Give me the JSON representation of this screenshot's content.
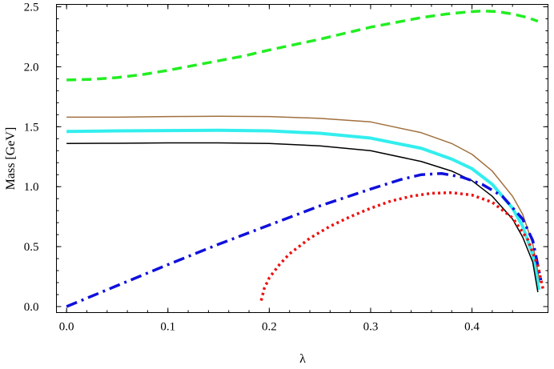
{
  "chart_data": {
    "type": "line",
    "title": "",
    "xlabel": "λ",
    "ylabel": "Mass [GeV]",
    "xlim": [
      -0.01,
      0.475
    ],
    "ylim": [
      -0.05,
      2.52
    ],
    "xticks": [
      0.0,
      0.1,
      0.2,
      0.3,
      0.4
    ],
    "xtick_labels": [
      "0.0",
      "0.1",
      "0.2",
      "0.3",
      "0.4"
    ],
    "yticks": [
      0.0,
      0.5,
      1.0,
      1.5,
      2.0,
      2.5
    ],
    "ytick_labels": [
      "0.0",
      "0.5",
      "1.0",
      "1.5",
      "2.0",
      "2.5"
    ],
    "grid": false,
    "legend": "none",
    "series": [
      {
        "color": "#22ee22",
        "style": "dashed",
        "width": 3.5,
        "x": [
          0.0,
          0.025,
          0.05,
          0.075,
          0.1,
          0.125,
          0.15,
          0.175,
          0.2,
          0.225,
          0.25,
          0.275,
          0.3,
          0.325,
          0.35,
          0.375,
          0.4,
          0.41,
          0.425,
          0.44,
          0.455,
          0.465
        ],
        "y": [
          1.89,
          1.895,
          1.91,
          1.935,
          1.97,
          2.01,
          2.05,
          2.09,
          2.14,
          2.185,
          2.23,
          2.28,
          2.33,
          2.37,
          2.41,
          2.44,
          2.46,
          2.465,
          2.46,
          2.44,
          2.41,
          2.38
        ]
      },
      {
        "color": "#a0703e",
        "style": "solid",
        "width": 1.5,
        "x": [
          0.0,
          0.05,
          0.1,
          0.15,
          0.2,
          0.25,
          0.3,
          0.35,
          0.38,
          0.4,
          0.42,
          0.44,
          0.45,
          0.46,
          0.467
        ],
        "y": [
          1.58,
          1.58,
          1.585,
          1.587,
          1.585,
          1.57,
          1.54,
          1.45,
          1.36,
          1.27,
          1.13,
          0.92,
          0.77,
          0.52,
          0.2
        ]
      },
      {
        "color": "#33eeee",
        "style": "solid",
        "width": 4,
        "x": [
          0.0,
          0.05,
          0.1,
          0.15,
          0.2,
          0.25,
          0.3,
          0.35,
          0.38,
          0.4,
          0.42,
          0.44,
          0.45,
          0.46,
          0.466
        ],
        "y": [
          1.46,
          1.465,
          1.468,
          1.47,
          1.465,
          1.445,
          1.405,
          1.32,
          1.23,
          1.15,
          1.02,
          0.82,
          0.67,
          0.43,
          0.14
        ]
      },
      {
        "color": "#000000",
        "style": "solid",
        "width": 1.5,
        "x": [
          0.0,
          0.05,
          0.1,
          0.15,
          0.2,
          0.25,
          0.3,
          0.35,
          0.38,
          0.4,
          0.42,
          0.44,
          0.45,
          0.46,
          0.465
        ],
        "y": [
          1.36,
          1.362,
          1.365,
          1.365,
          1.36,
          1.34,
          1.3,
          1.21,
          1.13,
          1.05,
          0.92,
          0.73,
          0.58,
          0.37,
          0.12
        ]
      },
      {
        "color": "#1010dd",
        "style": "dashdot",
        "width": 3.5,
        "x": [
          0.0,
          0.05,
          0.1,
          0.15,
          0.2,
          0.25,
          0.3,
          0.33,
          0.35,
          0.37,
          0.39,
          0.41,
          0.43,
          0.45,
          0.46,
          0.468
        ],
        "y": [
          0.0,
          0.175,
          0.35,
          0.52,
          0.68,
          0.84,
          0.98,
          1.06,
          1.1,
          1.11,
          1.08,
          1.02,
          0.92,
          0.73,
          0.55,
          0.22
        ]
      },
      {
        "color": "#ee1111",
        "style": "dotted",
        "width": 3.5,
        "x": [
          0.192,
          0.195,
          0.2,
          0.21,
          0.22,
          0.24,
          0.26,
          0.28,
          0.3,
          0.32,
          0.34,
          0.36,
          0.38,
          0.4,
          0.42,
          0.44,
          0.455,
          0.465,
          0.47
        ],
        "y": [
          0.05,
          0.15,
          0.24,
          0.35,
          0.44,
          0.57,
          0.67,
          0.75,
          0.82,
          0.88,
          0.92,
          0.945,
          0.95,
          0.93,
          0.87,
          0.74,
          0.56,
          0.34,
          0.15
        ]
      }
    ]
  }
}
